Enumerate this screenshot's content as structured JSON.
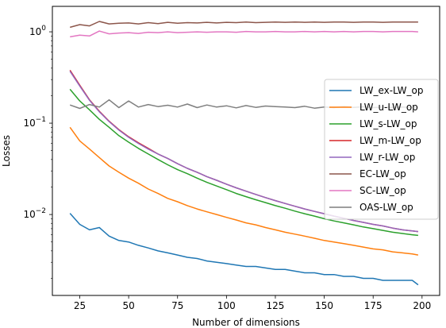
{
  "chart_data": {
    "type": "line",
    "title": "",
    "xlabel": "Number of dimensions",
    "ylabel": "Losses",
    "yscale": "log",
    "xlim": [
      11,
      209
    ],
    "ylim": [
      0.0013,
      1.9
    ],
    "x_ticks": [
      25,
      50,
      75,
      100,
      125,
      150,
      175,
      200
    ],
    "y_ticks": [
      {
        "value": 0.01,
        "base": "10",
        "exp": "−2"
      },
      {
        "value": 0.1,
        "base": "10",
        "exp": "−1"
      },
      {
        "value": 1,
        "base": "10",
        "exp": "0"
      }
    ],
    "grid": false,
    "legend_position": "right",
    "x": [
      20,
      25,
      30,
      35,
      40,
      45,
      50,
      55,
      60,
      65,
      70,
      75,
      80,
      85,
      90,
      95,
      100,
      105,
      110,
      115,
      120,
      125,
      130,
      135,
      140,
      145,
      150,
      155,
      160,
      165,
      170,
      175,
      180,
      185,
      190,
      195,
      198
    ],
    "series": [
      {
        "name": "LW_ex-LW_op",
        "color": "#1f77b4",
        "values": [
          0.0103,
          0.0078,
          0.0068,
          0.0072,
          0.0058,
          0.0052,
          0.005,
          0.0046,
          0.0043,
          0.004,
          0.0038,
          0.0036,
          0.0034,
          0.0033,
          0.0031,
          0.003,
          0.0029,
          0.0028,
          0.0027,
          0.0027,
          0.0026,
          0.0025,
          0.0025,
          0.0024,
          0.0023,
          0.0023,
          0.0022,
          0.0022,
          0.0021,
          0.0021,
          0.002,
          0.002,
          0.0019,
          0.0019,
          0.0019,
          0.0019,
          0.0017
        ]
      },
      {
        "name": "LW_u-LW_op",
        "color": "#ff7f0e",
        "values": [
          0.09,
          0.064,
          0.052,
          0.042,
          0.034,
          0.029,
          0.025,
          0.022,
          0.019,
          0.017,
          0.015,
          0.0138,
          0.0125,
          0.0115,
          0.0107,
          0.01,
          0.0093,
          0.0087,
          0.0081,
          0.0077,
          0.0072,
          0.0068,
          0.0064,
          0.0061,
          0.0058,
          0.0055,
          0.0052,
          0.005,
          0.0048,
          0.0046,
          0.0044,
          0.0042,
          0.0041,
          0.0039,
          0.0038,
          0.0037,
          0.0036
        ]
      },
      {
        "name": "LW_s-LW_op",
        "color": "#2ca02c",
        "values": [
          0.235,
          0.175,
          0.14,
          0.11,
          0.09,
          0.073,
          0.062,
          0.053,
          0.046,
          0.04,
          0.035,
          0.031,
          0.028,
          0.025,
          0.0225,
          0.0205,
          0.0187,
          0.017,
          0.0157,
          0.0145,
          0.0135,
          0.0125,
          0.0117,
          0.0109,
          0.0102,
          0.0096,
          0.009,
          0.0085,
          0.0081,
          0.0077,
          0.0073,
          0.007,
          0.0067,
          0.0064,
          0.0062,
          0.006,
          0.0059
        ]
      },
      {
        "name": "LW_m-LW_op",
        "color": "#d62728",
        "values": [
          0.38,
          0.26,
          0.18,
          0.135,
          0.105,
          0.085,
          0.071,
          0.061,
          0.053,
          0.046,
          0.041,
          0.036,
          0.032,
          0.029,
          0.026,
          0.0237,
          0.0215,
          0.0196,
          0.018,
          0.0166,
          0.0153,
          0.0142,
          0.0132,
          0.0123,
          0.0115,
          0.0108,
          0.0102,
          0.0096,
          0.0091,
          0.0086,
          0.0082,
          0.0078,
          0.0075,
          0.0071,
          0.0068,
          0.0066,
          0.0065
        ]
      },
      {
        "name": "LW_r-LW_op",
        "color": "#9467bd",
        "values": [
          0.37,
          0.255,
          0.178,
          0.133,
          0.104,
          0.084,
          0.07,
          0.06,
          0.052,
          0.046,
          0.041,
          0.036,
          0.032,
          0.029,
          0.026,
          0.0237,
          0.0215,
          0.0196,
          0.018,
          0.0166,
          0.0153,
          0.0142,
          0.0132,
          0.0123,
          0.0115,
          0.0108,
          0.0102,
          0.0096,
          0.0091,
          0.0086,
          0.0082,
          0.0078,
          0.0075,
          0.0071,
          0.0068,
          0.0066,
          0.0065
        ]
      },
      {
        "name": "EC-LW_op",
        "color": "#8c564b",
        "values": [
          1.12,
          1.2,
          1.16,
          1.3,
          1.22,
          1.24,
          1.25,
          1.22,
          1.26,
          1.23,
          1.27,
          1.24,
          1.26,
          1.25,
          1.27,
          1.25,
          1.27,
          1.26,
          1.28,
          1.26,
          1.27,
          1.28,
          1.27,
          1.28,
          1.27,
          1.28,
          1.27,
          1.28,
          1.28,
          1.27,
          1.28,
          1.28,
          1.27,
          1.28,
          1.28,
          1.28,
          1.28
        ]
      },
      {
        "name": "SC-LW_op",
        "color": "#e377c2",
        "values": [
          0.88,
          0.92,
          0.9,
          1.02,
          0.95,
          0.97,
          0.98,
          0.96,
          0.99,
          0.98,
          1.0,
          0.98,
          0.99,
          1.0,
          0.99,
          1.0,
          1.0,
          0.99,
          1.01,
          1.0,
          1.0,
          1.01,
          1.0,
          1.0,
          1.01,
          1.0,
          1.01,
          1.0,
          1.01,
          1.0,
          1.01,
          1.01,
          1.0,
          1.01,
          1.01,
          1.01,
          1.0
        ]
      },
      {
        "name": "OAS-LW_op",
        "color": "#7f7f7f",
        "values": [
          0.158,
          0.145,
          0.16,
          0.15,
          0.18,
          0.148,
          0.175,
          0.15,
          0.16,
          0.152,
          0.157,
          0.15,
          0.162,
          0.148,
          0.158,
          0.15,
          0.155,
          0.147,
          0.156,
          0.149,
          0.154,
          0.152,
          0.15,
          0.148,
          0.153,
          0.146,
          0.15,
          0.148,
          0.152,
          0.149,
          0.151,
          0.148,
          0.15,
          0.149,
          0.15,
          0.148,
          0.15
        ]
      }
    ]
  }
}
